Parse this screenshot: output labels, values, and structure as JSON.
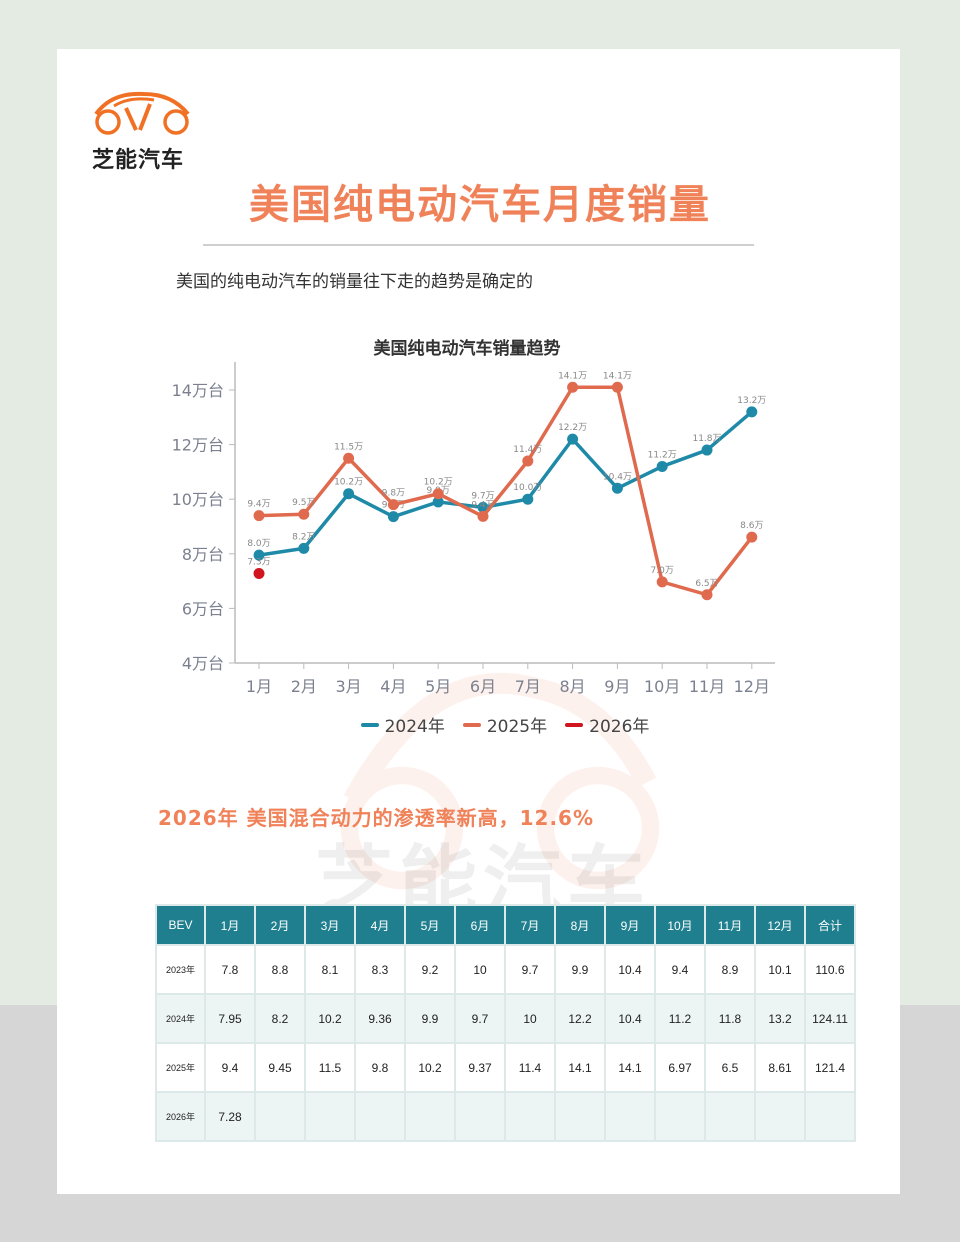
{
  "brand": {
    "name": "芝能汽车",
    "accent": "#f0825a"
  },
  "header": {
    "title": "美国纯电动汽车月度销量",
    "subtitle": "美国的纯电动汽车的销量往下走的趋势是确定的"
  },
  "chart_data": {
    "type": "line",
    "title": "美国纯电动汽车销量趋势",
    "xlabel": "",
    "ylabel": "",
    "categories": [
      "1月",
      "2月",
      "3月",
      "4月",
      "5月",
      "6月",
      "7月",
      "8月",
      "9月",
      "10月",
      "11月",
      "12月"
    ],
    "y_ticks": [
      "4万台",
      "6万台",
      "8万台",
      "10万台",
      "12万台",
      "14万台"
    ],
    "ylim": [
      4,
      15
    ],
    "grid": false,
    "legend_position": "bottom",
    "series": [
      {
        "name": "2024年",
        "color": "#1f8aa8",
        "values": [
          7.95,
          8.2,
          10.2,
          9.36,
          9.9,
          9.7,
          10.0,
          12.2,
          10.4,
          11.2,
          11.8,
          13.2
        ],
        "labels": [
          "8.0万",
          "8.2万",
          "10.2万",
          "9.4万",
          "9.9万",
          "9.7万",
          "10.0万",
          "12.2万",
          "10.4万",
          "11.2万",
          "11.8万",
          "13.2万"
        ]
      },
      {
        "name": "2025年",
        "color": "#e06a4e",
        "values": [
          9.4,
          9.45,
          11.5,
          9.8,
          10.2,
          9.37,
          11.4,
          14.1,
          14.1,
          6.97,
          6.5,
          8.61
        ],
        "labels": [
          "9.4万",
          "9.5万",
          "11.5万",
          "9.8万",
          "10.2万",
          "9.4万",
          "11.4万",
          "14.1万",
          "14.1万",
          "7.0万",
          "6.5万",
          "8.6万"
        ]
      },
      {
        "name": "2026年",
        "color": "#d0151e",
        "values": [
          7.28
        ],
        "labels": [
          "7.3万"
        ]
      }
    ]
  },
  "section": {
    "heading": "2026年 美国混合动力的渗透率新高，12.6%"
  },
  "table": {
    "headers": [
      "BEV",
      "1月",
      "2月",
      "3月",
      "4月",
      "5月",
      "6月",
      "7月",
      "8月",
      "9月",
      "10月",
      "11月",
      "12月",
      "合计"
    ],
    "rows": [
      [
        "2023年",
        "7.8",
        "8.8",
        "8.1",
        "8.3",
        "9.2",
        "10",
        "9.7",
        "9.9",
        "10.4",
        "9.4",
        "8.9",
        "10.1",
        "110.6"
      ],
      [
        "2024年",
        "7.95",
        "8.2",
        "10.2",
        "9.36",
        "9.9",
        "9.7",
        "10",
        "12.2",
        "10.4",
        "11.2",
        "11.8",
        "13.2",
        "124.11"
      ],
      [
        "2025年",
        "9.4",
        "9.45",
        "11.5",
        "9.8",
        "10.2",
        "9.37",
        "11.4",
        "14.1",
        "14.1",
        "6.97",
        "6.5",
        "8.61",
        "121.4"
      ],
      [
        "2026年",
        "7.28",
        "",
        "",
        "",
        "",
        "",
        "",
        "",
        "",
        "",
        "",
        "",
        ""
      ]
    ],
    "header_color": "#1f7f8e"
  }
}
